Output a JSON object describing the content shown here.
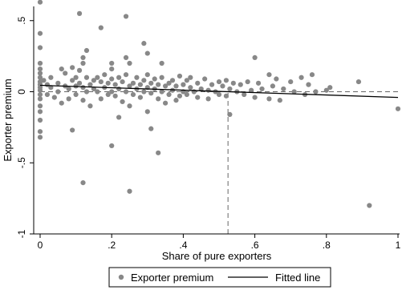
{
  "colors": {
    "points": "#888888",
    "fitted_line": "#000000",
    "reference_line": "#666666",
    "axis": "#000000"
  },
  "chart_data": {
    "type": "scatter",
    "xlabel": "Share of pure exporters",
    "ylabel": "Exporter premium",
    "xlim": [
      0,
      1
    ],
    "ylim": [
      -1,
      0.6
    ],
    "x_ticks": [
      {
        "value": 0,
        "label": "0"
      },
      {
        "value": 0.2,
        "label": ".2"
      },
      {
        "value": 0.4,
        "label": ".4"
      },
      {
        "value": 0.6,
        "label": ".6"
      },
      {
        "value": 0.8,
        "label": ".8"
      },
      {
        "value": 1,
        "label": "1"
      }
    ],
    "y_ticks": [
      {
        "value": -1,
        "label": "-1"
      },
      {
        "value": -0.5,
        "label": "-.5"
      },
      {
        "value": 0,
        "label": "0"
      },
      {
        "value": 0.5,
        "label": ".5"
      }
    ],
    "legend": {
      "position": "bottom",
      "entries": [
        "Exporter premium",
        "Fitted line"
      ]
    },
    "fitted_line": {
      "x": [
        0,
        1
      ],
      "y": [
        0.045,
        -0.04
      ]
    },
    "horizontal_dashed_line": {
      "y": 0
    },
    "vertical_dashed_line": {
      "x": 0.525,
      "y_from": -1,
      "y_to": 0
    },
    "series": [
      {
        "name": "Exporter premium",
        "points": [
          [
            0,
            0.63
          ],
          [
            0,
            0.41
          ],
          [
            0,
            0.31
          ],
          [
            0,
            0.2
          ],
          [
            0,
            0.16
          ],
          [
            0,
            0.13
          ],
          [
            0,
            0.1
          ],
          [
            0,
            0.07
          ],
          [
            0,
            0.05
          ],
          [
            0,
            0.03
          ],
          [
            0,
            0.01
          ],
          [
            0,
            -0.02
          ],
          [
            0,
            -0.05
          ],
          [
            0,
            -0.1
          ],
          [
            0,
            -0.14
          ],
          [
            0,
            -0.2
          ],
          [
            0,
            -0.28
          ],
          [
            0,
            -0.32
          ],
          [
            0.01,
            0.08
          ],
          [
            0.02,
            0.05
          ],
          [
            0.02,
            -0.02
          ],
          [
            0.03,
            0.1
          ],
          [
            0.03,
            0.03
          ],
          [
            0.04,
            -0.04
          ],
          [
            0.05,
            0.06
          ],
          [
            0.05,
            0.0
          ],
          [
            0.06,
            0.16
          ],
          [
            0.06,
            -0.08
          ],
          [
            0.07,
            0.04
          ],
          [
            0.07,
            0.13
          ],
          [
            0.08,
            0.02
          ],
          [
            0.08,
            -0.05
          ],
          [
            0.09,
            0.17
          ],
          [
            0.09,
            0.08
          ],
          [
            0.09,
            -0.27
          ],
          [
            0.1,
            0.04
          ],
          [
            0.1,
            0.1
          ],
          [
            0.1,
            -0.02
          ],
          [
            0.11,
            0.15
          ],
          [
            0.11,
            0.06
          ],
          [
            0.12,
            0.2
          ],
          [
            0.12,
            0.03
          ],
          [
            0.12,
            -0.06
          ],
          [
            0.13,
            0.1
          ],
          [
            0.13,
            0.0
          ],
          [
            0.14,
            0.05
          ],
          [
            0.14,
            -0.1
          ],
          [
            0.15,
            0.02
          ],
          [
            0.15,
            0.08
          ],
          [
            0.11,
            0.55
          ],
          [
            0.12,
            -0.64
          ],
          [
            0.12,
            0.24
          ],
          [
            0.13,
            0.29
          ],
          [
            0.16,
            0.1
          ],
          [
            0.16,
            0.0
          ],
          [
            0.17,
            0.07
          ],
          [
            0.17,
            -0.05
          ],
          [
            0.18,
            0.12
          ],
          [
            0.18,
            0.03
          ],
          [
            0.19,
            -0.02
          ],
          [
            0.19,
            0.06
          ],
          [
            0.2,
            0.09
          ],
          [
            0.2,
            0.0
          ],
          [
            0.17,
            0.45
          ],
          [
            0.2,
            0.2
          ],
          [
            0.2,
            0.16
          ],
          [
            0.2,
            -0.38
          ],
          [
            0.21,
            0.05
          ],
          [
            0.21,
            -0.03
          ],
          [
            0.22,
            0.1
          ],
          [
            0.22,
            0.02
          ],
          [
            0.23,
            -0.07
          ],
          [
            0.23,
            0.07
          ],
          [
            0.24,
            0.0
          ],
          [
            0.24,
            0.12
          ],
          [
            0.25,
            0.04
          ],
          [
            0.25,
            -0.1
          ],
          [
            0.24,
            0.53
          ],
          [
            0.24,
            0.24
          ],
          [
            0.25,
            0.2
          ],
          [
            0.25,
            -0.7
          ],
          [
            0.22,
            -0.18
          ],
          [
            0.26,
            0.06
          ],
          [
            0.26,
            -0.02
          ],
          [
            0.27,
            0.1
          ],
          [
            0.27,
            0.02
          ],
          [
            0.28,
            0.05
          ],
          [
            0.28,
            -0.04
          ],
          [
            0.29,
            0.08
          ],
          [
            0.29,
            0.0
          ],
          [
            0.3,
            0.03
          ],
          [
            0.3,
            0.12
          ],
          [
            0.29,
            0.34
          ],
          [
            0.3,
            0.27
          ],
          [
            0.3,
            -0.14
          ],
          [
            0.31,
            -0.26
          ],
          [
            0.31,
            0.06
          ],
          [
            0.31,
            -0.01
          ],
          [
            0.32,
            0.09
          ],
          [
            0.32,
            0.02
          ],
          [
            0.33,
            -0.05
          ],
          [
            0.33,
            0.05
          ],
          [
            0.34,
            0.1
          ],
          [
            0.34,
            0.0
          ],
          [
            0.35,
            0.04
          ],
          [
            0.35,
            -0.08
          ],
          [
            0.33,
            -0.43
          ],
          [
            0.34,
            0.2
          ],
          [
            0.36,
            0.06
          ],
          [
            0.36,
            -0.02
          ],
          [
            0.37,
            0.08
          ],
          [
            0.37,
            0.01
          ],
          [
            0.38,
            -0.06
          ],
          [
            0.38,
            0.04
          ],
          [
            0.39,
            0.11
          ],
          [
            0.39,
            -0.03
          ],
          [
            0.4,
            0.05
          ],
          [
            0.4,
            0.0
          ],
          [
            0.41,
            0.08
          ],
          [
            0.41,
            -0.02
          ],
          [
            0.42,
            0.03
          ],
          [
            0.42,
            0.1
          ],
          [
            0.43,
            0.0
          ],
          [
            0.44,
            0.06
          ],
          [
            0.44,
            -0.04
          ],
          [
            0.45,
            0.02
          ],
          [
            0.46,
            0.09
          ],
          [
            0.47,
            0.01
          ],
          [
            0.47,
            -0.05
          ],
          [
            0.48,
            0.05
          ],
          [
            0.49,
            0.0
          ],
          [
            0.5,
            0.07
          ],
          [
            0.5,
            -0.02
          ],
          [
            0.51,
            0.04
          ],
          [
            0.52,
            0.08
          ],
          [
            0.52,
            -0.03
          ],
          [
            0.53,
            0.02
          ],
          [
            0.53,
            -0.16
          ],
          [
            0.54,
            0.06
          ],
          [
            0.55,
            0.0
          ],
          [
            0.56,
            0.05
          ],
          [
            0.57,
            -0.02
          ],
          [
            0.58,
            0.07
          ],
          [
            0.59,
            0.01
          ],
          [
            0.6,
            0.24
          ],
          [
            0.6,
            -0.04
          ],
          [
            0.61,
            0.06
          ],
          [
            0.62,
            0.02
          ],
          [
            0.64,
            0.12
          ],
          [
            0.64,
            -0.05
          ],
          [
            0.65,
            0.04
          ],
          [
            0.66,
            0.09
          ],
          [
            0.67,
            -0.06
          ],
          [
            0.68,
            0.02
          ],
          [
            0.7,
            0.07
          ],
          [
            0.71,
            0.0
          ],
          [
            0.73,
            0.1
          ],
          [
            0.74,
            -0.02
          ],
          [
            0.75,
            0.05
          ],
          [
            0.76,
            0.12
          ],
          [
            0.77,
            0.0
          ],
          [
            0.8,
            0.01
          ],
          [
            0.81,
            0.03
          ],
          [
            0.89,
            0.07
          ],
          [
            0.92,
            -0.8
          ],
          [
            1,
            -0.12
          ]
        ]
      }
    ]
  }
}
